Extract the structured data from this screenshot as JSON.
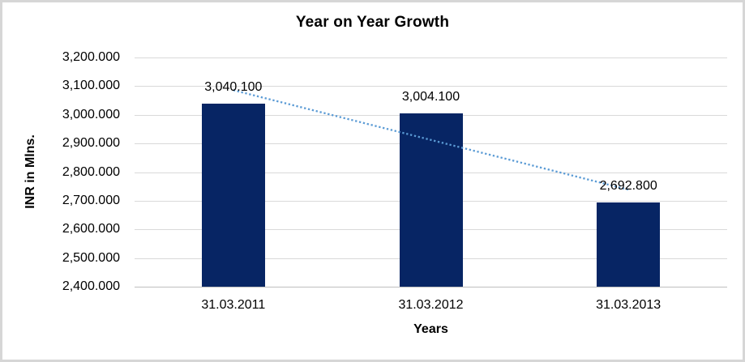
{
  "window": {
    "background": "#FFFFFF",
    "border_color": "#D6D6D6"
  },
  "chart_data": {
    "type": "bar",
    "title": "Year on Year Growth",
    "xlabel": "Years",
    "ylabel": "INR in Mlns.",
    "categories": [
      "31.03.2011",
      "31.03.2012",
      "31.03.2013"
    ],
    "values": [
      3040.1,
      3004.1,
      2692.8
    ],
    "data_labels": [
      "3,040.100",
      "3,004.100",
      "2,692.800"
    ],
    "ylim": [
      2400,
      3200
    ],
    "ytick_step": 100,
    "ytick_labels": [
      "2,400.000",
      "2,500.000",
      "2,600.000",
      "2,700.000",
      "2,800.000",
      "2,900.000",
      "3,000.000",
      "3,100.000",
      "3,200.000"
    ],
    "grid": true,
    "legend": "none",
    "trendline": {
      "type": "linear",
      "line_style": "dotted",
      "color": "#5B9BD5"
    },
    "colors": {
      "bar": "#072564",
      "gridline": "#D9D9D9",
      "axis_line": "#BFBFBF",
      "text": "#000000"
    }
  }
}
